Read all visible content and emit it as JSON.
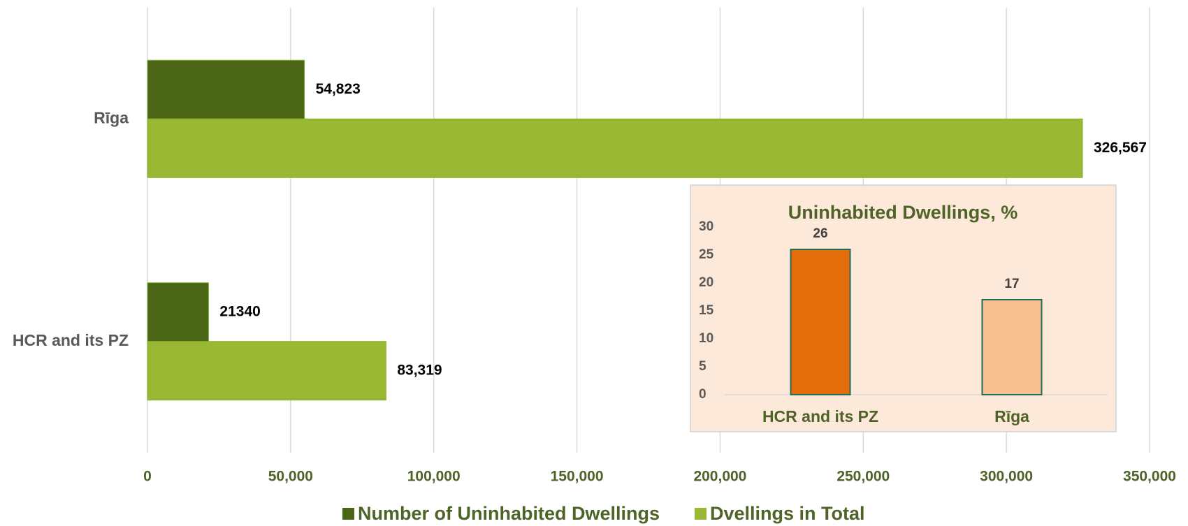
{
  "chart_data": [
    {
      "type": "bar",
      "orientation": "horizontal",
      "categories": [
        "Rīga",
        "HCR and its PZ"
      ],
      "series": [
        {
          "name": "Number of Uninhabited Dwellings",
          "color": "#4a6516",
          "values": [
            54823,
            21340
          ],
          "value_labels": [
            "54,823",
            "21340"
          ]
        },
        {
          "name": "Dvellings in Total",
          "color": "#9ab833",
          "values": [
            326567,
            83319
          ],
          "value_labels": [
            "326,567",
            "83,319"
          ]
        }
      ],
      "xlim": [
        0,
        350000
      ],
      "xticks": [
        0,
        {
          "value": 50000,
          "label": "50,000"
        },
        {
          "value": 100000,
          "label": "100,000"
        },
        {
          "value": 150000,
          "label": "150,000"
        },
        {
          "value": 200000,
          "label": "200,000"
        },
        {
          "value": 250000,
          "label": "250,000"
        },
        {
          "value": 300000,
          "label": "300,000"
        },
        {
          "value": 350000,
          "label": "350,000"
        }
      ],
      "grid": true,
      "legend": "bottom"
    },
    {
      "type": "bar",
      "orientation": "vertical",
      "title": "Uninhabited Dwellings, %",
      "categories": [
        "HCR and its PZ",
        "Rīga"
      ],
      "values": [
        26,
        17
      ],
      "colors": [
        "#e46c0a",
        "#f8c08f"
      ],
      "ylim": [
        0,
        30
      ],
      "yticks": [
        0,
        5,
        10,
        15,
        20,
        25,
        30
      ],
      "grid": false
    }
  ]
}
